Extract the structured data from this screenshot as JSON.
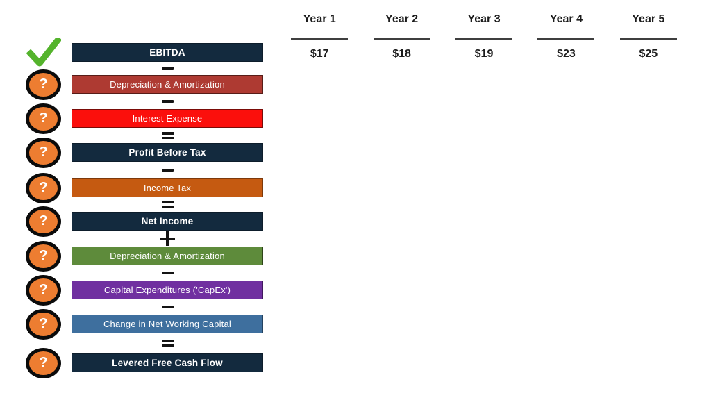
{
  "colors": {
    "check_green": "#54b32c",
    "question_orange": "#ed7d31",
    "question_ring": "#0b0b0b",
    "operator_black": "#141414",
    "year_text": "#1c1c1c",
    "underline_gray": "#3f3f3f",
    "navy": "#132a3e"
  },
  "icons": {
    "check": "check-icon",
    "question": "question-icon",
    "question_glyph": "?"
  },
  "operators": {
    "minus": "-",
    "equals": "=",
    "plus": "+"
  },
  "rows": [
    {
      "label": "EBITDA",
      "bg": "#132a3e",
      "border": "#0d1d2b",
      "bold": true,
      "icon": "check",
      "op_after": "minus"
    },
    {
      "label": "Depreciation & Amortization",
      "bg": "#ae3a32",
      "border": "#571d18",
      "bold": false,
      "icon": "question",
      "op_after": "minus"
    },
    {
      "label": "Interest Expense",
      "bg": "#fb0f0c",
      "border": "#7a0b08",
      "bold": false,
      "icon": "question",
      "op_after": "equals"
    },
    {
      "label": "Profit Before Tax",
      "bg": "#132a3e",
      "border": "#0d1d2b",
      "bold": true,
      "icon": "question",
      "op_after": "minus"
    },
    {
      "label": "Income Tax",
      "bg": "#c55a11",
      "border": "#7d390b",
      "bold": false,
      "icon": "question",
      "op_after": "equals"
    },
    {
      "label": "Net Income",
      "bg": "#132a3e",
      "border": "#0d1d2b",
      "bold": true,
      "icon": "question",
      "op_after": "plus"
    },
    {
      "label": "Depreciation & Amortization",
      "bg": "#5e8b3b",
      "border": "#2e4419",
      "bold": false,
      "icon": "question",
      "op_after": "minus"
    },
    {
      "label": "Capital Expenditures ('CapEx')",
      "bg": "#7030a0",
      "border": "#41195e",
      "bold": false,
      "icon": "question",
      "op_after": "minus"
    },
    {
      "label": "Change in Net Working Capital",
      "bg": "#3e6f9e",
      "border": "#24425f",
      "bold": false,
      "icon": "question",
      "op_after": "equals"
    },
    {
      "label": "Levered Free Cash Flow",
      "bg": "#132a3e",
      "border": "#0d1d2b",
      "bold": true,
      "icon": "question",
      "op_after": null
    }
  ],
  "years": {
    "headers": [
      "Year 1",
      "Year 2",
      "Year 3",
      "Year 4",
      "Year 5"
    ],
    "ebitda_values": [
      "$17",
      "$18",
      "$19",
      "$23",
      "$25"
    ]
  }
}
